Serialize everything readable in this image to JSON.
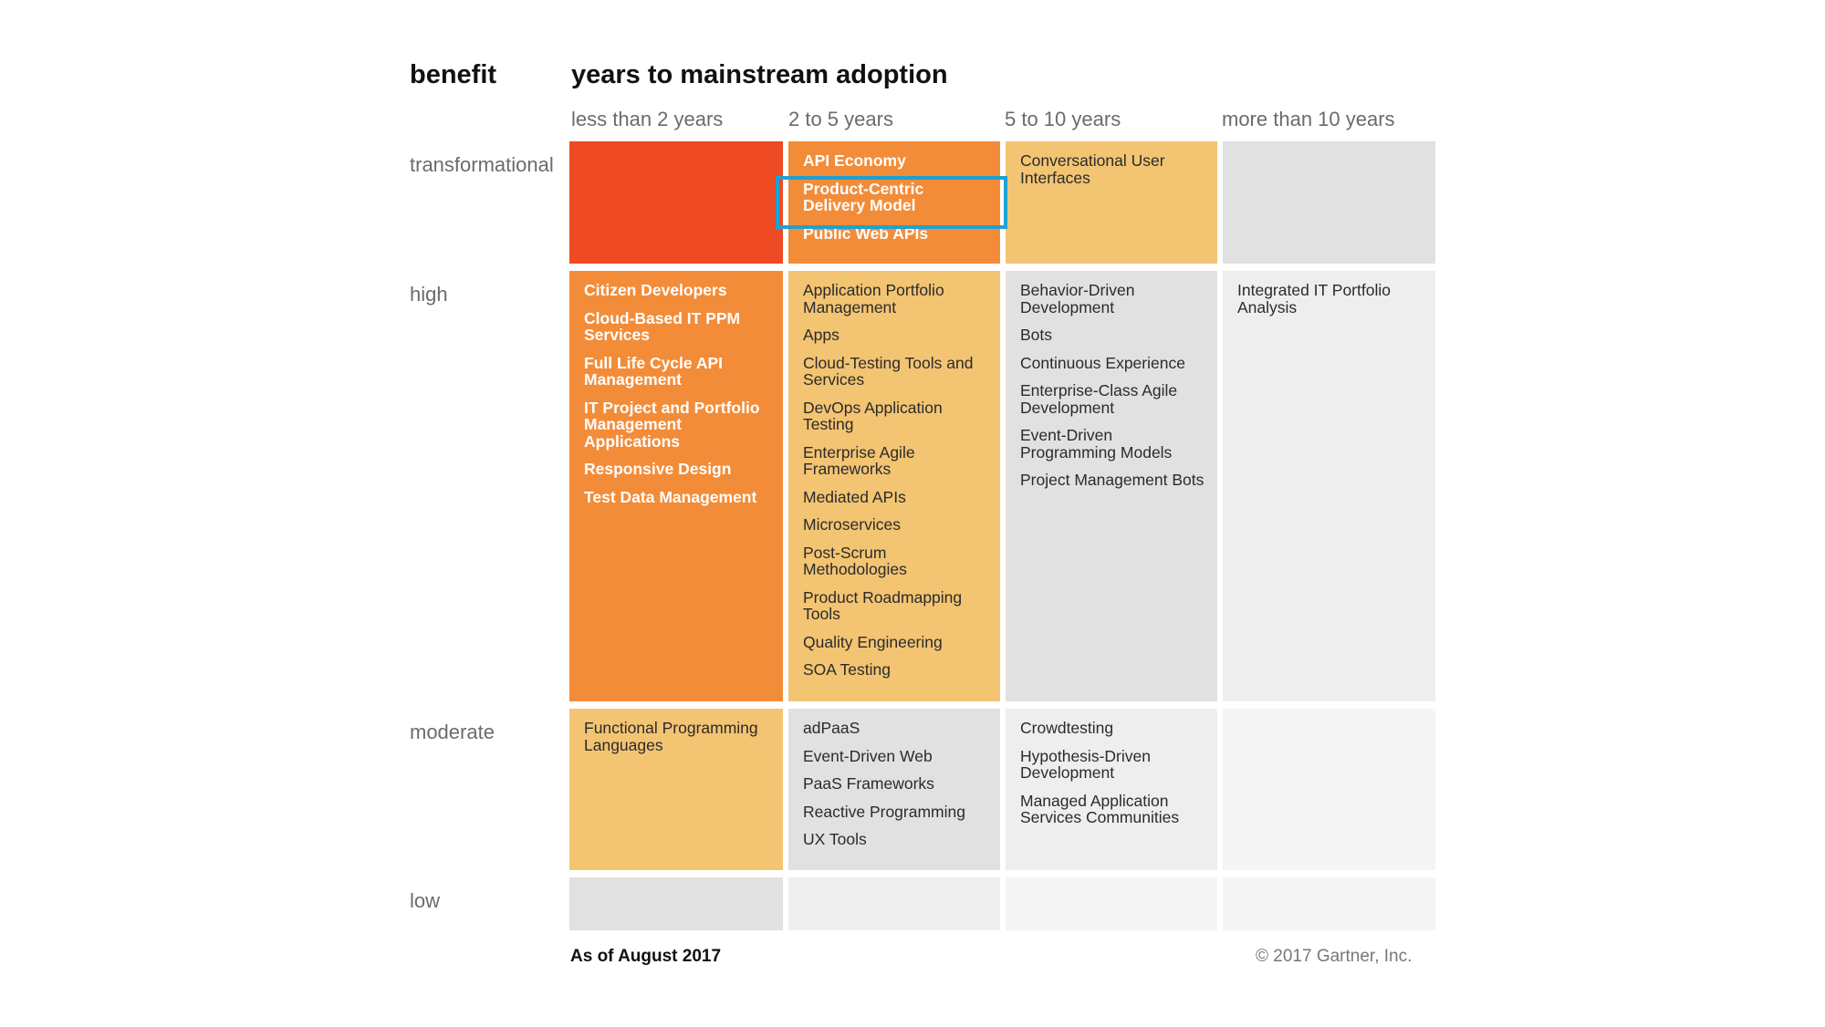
{
  "header": {
    "benefit": "benefit",
    "years": "years to mainstream adoption"
  },
  "columns": [
    "less than 2 years",
    "2 to 5 years",
    "5 to 10 years",
    "more than 10 years"
  ],
  "rows": [
    "transformational",
    "high",
    "moderate",
    "low"
  ],
  "cells": {
    "transformational": {
      "lt2": [],
      "y2to5": [
        "API Economy",
        "Product-Centric Delivery Model",
        "Public Web APIs"
      ],
      "y5to10": [
        "Conversational User Interfaces"
      ],
      "gt10": []
    },
    "high": {
      "lt2": [
        "Citizen Developers",
        "Cloud-Based IT PPM Services",
        "Full Life Cycle API Management",
        "IT Project and Portfolio Management Applications",
        "Responsive Design",
        "Test Data Management"
      ],
      "y2to5": [
        "Application Portfolio Management",
        "Apps",
        "Cloud-Testing Tools and Services",
        "DevOps Application Testing",
        "Enterprise Agile Frameworks",
        "Mediated APIs",
        "Microservices",
        "Post-Scrum Methodologies",
        "Product Roadmapping Tools",
        "Quality Engineering",
        "SOA Testing"
      ],
      "y5to10": [
        "Behavior-Driven Development",
        "Bots",
        "Continuous Experience",
        "Enterprise-Class Agile Development",
        "Event-Driven Programming Models",
        "Project Management Bots"
      ],
      "gt10": [
        "Integrated IT Portfolio Analysis"
      ]
    },
    "moderate": {
      "lt2": [
        "Functional Programming Languages"
      ],
      "y2to5": [
        "adPaaS",
        "Event-Driven Web",
        "PaaS Frameworks",
        "Reactive Programming",
        "UX Tools"
      ],
      "y5to10": [
        "Crowdtesting",
        "Hypothesis-Driven Development",
        "Managed Application Services Communities"
      ],
      "gt10": []
    },
    "low": {
      "lt2": [],
      "y2to5": [],
      "y5to10": [],
      "gt10": []
    }
  },
  "highlighted_item": "Product-Centric Delivery Model",
  "footer": {
    "as_of": "As of August 2017",
    "copyright": "© 2017 Gartner, Inc."
  },
  "colors": {
    "red": "#ee4a24",
    "orange": "#f38c38",
    "yellow": "#f3c472",
    "grey_dark": "#e1e1e1",
    "grey_mid": "#eeeeee",
    "grey_light": "#f5f5f5",
    "highlight_border": "#1ea1d3"
  }
}
